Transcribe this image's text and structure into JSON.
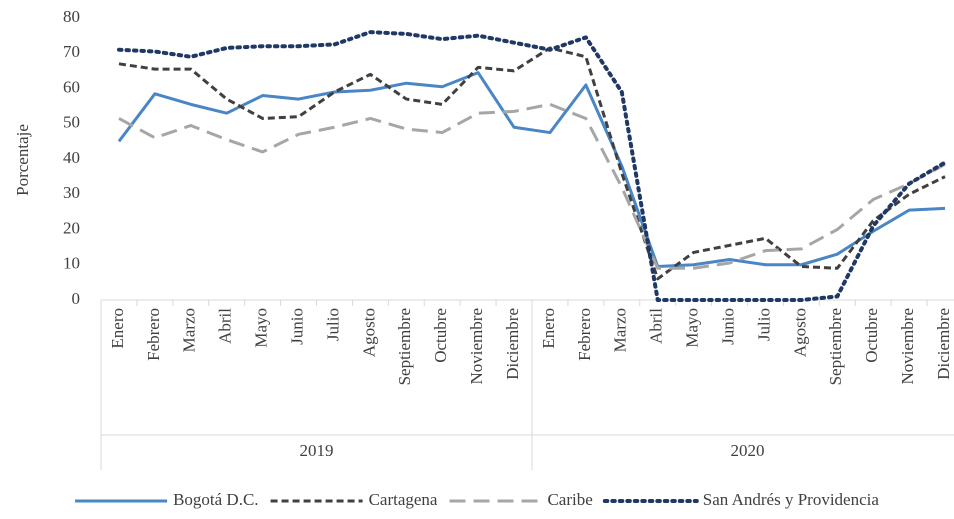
{
  "chart_data": {
    "type": "line",
    "y_label": "Porcentaje",
    "ylim": [
      0,
      80
    ],
    "yticks": [
      0,
      10,
      20,
      30,
      40,
      50,
      60,
      70,
      80
    ],
    "grid": false,
    "legend": "bottom",
    "groups": [
      {
        "label": "2019",
        "categories": [
          "Enero",
          "Febrero",
          "Marzo",
          "Abril",
          "Mayo",
          "Junio",
          "Julio",
          "Agosto",
          "Septiembre",
          "Octubre",
          "Noviembre",
          "Diciembre"
        ]
      },
      {
        "label": "2020",
        "categories": [
          "Enero",
          "Febrero",
          "Marzo",
          "Abril",
          "Mayo",
          "Junio",
          "Julio",
          "Agosto",
          "Septiembre",
          "Octubre",
          "Noviembre",
          "Diciembre"
        ]
      }
    ],
    "series": [
      {
        "name": "Bogotá D.C.",
        "color": "#4a86c5",
        "dash": "solid",
        "values": [
          45,
          58.5,
          55.5,
          53,
          58,
          57,
          59,
          59.5,
          61.5,
          60.5,
          64.5,
          49,
          47.5,
          61,
          38,
          9.5,
          10,
          11.5,
          10,
          10,
          13,
          19.5,
          25.5,
          26
        ]
      },
      {
        "name": "Cartagena",
        "color": "#404040",
        "dash": "dashed",
        "values": [
          67,
          65.5,
          65.5,
          57,
          51.5,
          52,
          59,
          64,
          57,
          55.5,
          66,
          65,
          71.5,
          69,
          36,
          6,
          13.5,
          15.5,
          17.5,
          9.5,
          9,
          22.5,
          30,
          35
        ]
      },
      {
        "name": "Caribe",
        "color": "#a6a6a6",
        "dash": "longdash",
        "values": [
          51.5,
          46,
          49.5,
          45.5,
          42,
          47,
          49,
          51.5,
          48.5,
          47.5,
          53,
          53.5,
          55.5,
          51.5,
          32,
          9,
          9,
          10.5,
          14,
          14.5,
          20,
          28.5,
          33,
          38.5
        ]
      },
      {
        "name": "San Andrés y Providencia",
        "color": "#203864",
        "dash": "dotted",
        "values": [
          71,
          70.5,
          69,
          71.5,
          72,
          72,
          72.5,
          76,
          75.5,
          74,
          75,
          73,
          71,
          74.5,
          59,
          0,
          0,
          0,
          0,
          0,
          1,
          21,
          33,
          39
        ]
      }
    ]
  }
}
